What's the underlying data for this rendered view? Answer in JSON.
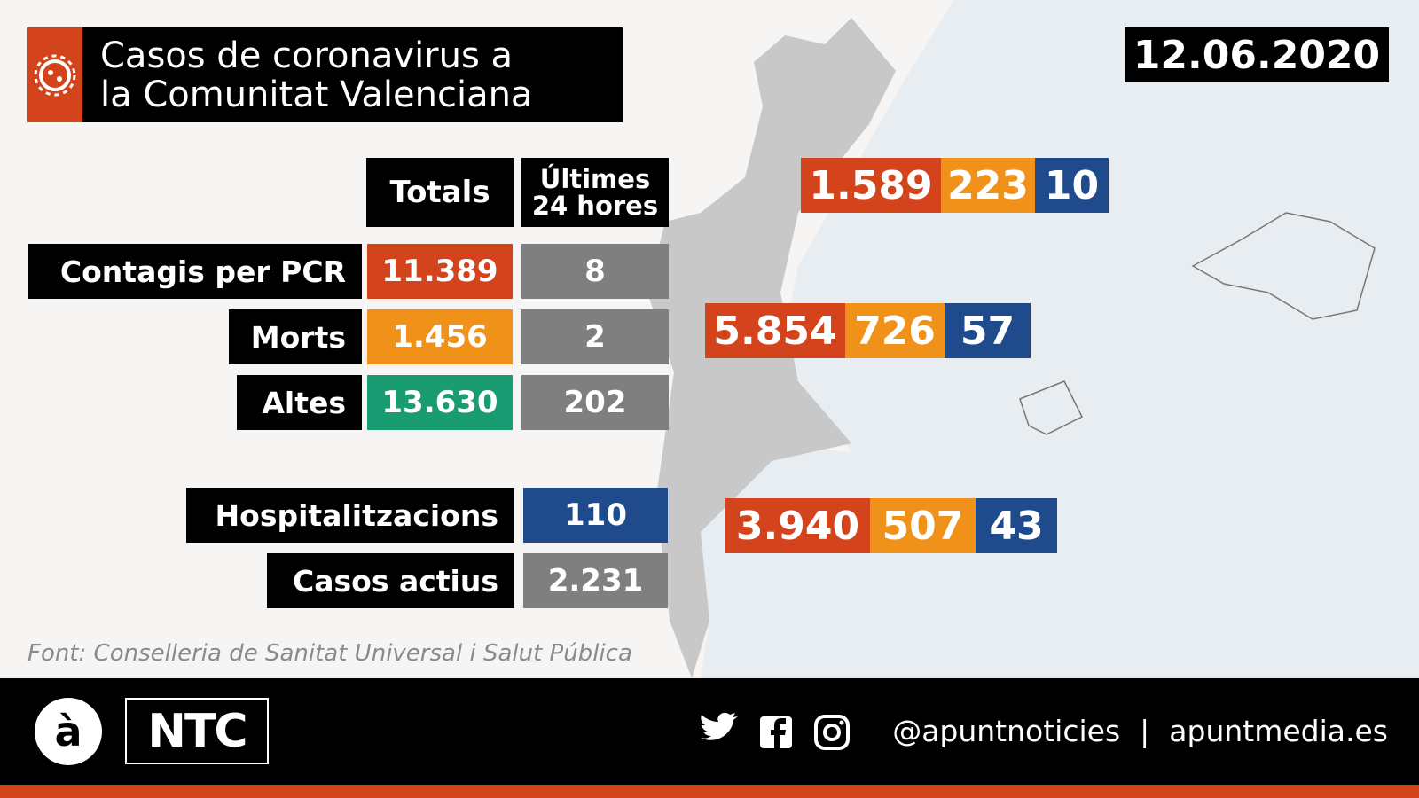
{
  "header": {
    "title_lines": [
      "Casos de coronavirus a",
      "la Comunitat Valenciana"
    ],
    "date": "12.06.2020"
  },
  "table": {
    "columns": [
      "Totals",
      "Últimes\n24 hores"
    ],
    "rows": [
      [
        "Contagis per PCR",
        "11.389",
        "8"
      ],
      [
        "Morts",
        "1.456",
        "2"
      ],
      [
        "Altes",
        "13.630",
        "202"
      ]
    ],
    "extra_rows": [
      [
        "Hospitalitzacions",
        "110"
      ],
      [
        "Casos actius",
        "2.231"
      ]
    ]
  },
  "provinces": [
    [
      "1.589",
      "223",
      "10"
    ],
    [
      "5.854",
      "726",
      "57"
    ],
    [
      "3.940",
      "507",
      "43"
    ]
  ],
  "source": "Font: Conselleria de Sanitat Universal i Salut Pública",
  "footer": {
    "logo": "à",
    "brand": "NTC",
    "handle": "@apuntnoticies",
    "separator": "|",
    "website": "apuntmedia.es"
  }
}
